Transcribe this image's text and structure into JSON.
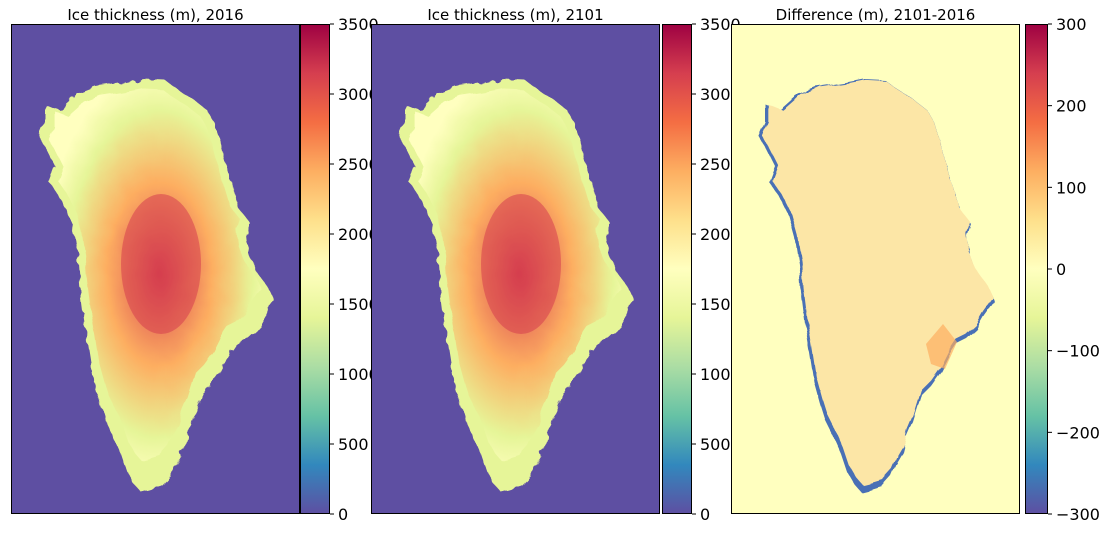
{
  "chart_data": [
    {
      "type": "heatmap",
      "title": "Ice thickness (m), 2016",
      "colorbar": {
        "ticks": [
          0,
          500,
          1000,
          1500,
          2000,
          2500,
          3000,
          3500
        ],
        "range": [
          0,
          3500
        ],
        "colormap": "Spectral_r"
      },
      "xticks": [],
      "yticks": []
    },
    {
      "type": "heatmap",
      "title": "Ice thickness (m), 2101",
      "colorbar": {
        "ticks": [
          0,
          500,
          1000,
          1500,
          2000,
          2500,
          3000,
          3500
        ],
        "range": [
          0,
          3500
        ],
        "colormap": "Spectral_r"
      },
      "xticks": [],
      "yticks": []
    },
    {
      "type": "heatmap",
      "title": "Difference (m), 2101-2016",
      "colorbar": {
        "ticks": [
          -300,
          -200,
          -100,
          0,
          100,
          200,
          300
        ],
        "range": [
          -300,
          300
        ],
        "colormap": "Spectral_r"
      },
      "xticks": [],
      "yticks": []
    }
  ],
  "colors": {
    "spectral_r": [
      "#5e4fa2",
      "#3288bd",
      "#66c2a5",
      "#abdda4",
      "#e6f598",
      "#ffffbf",
      "#fee08b",
      "#fdae61",
      "#f46d43",
      "#d53e4f",
      "#9e0142"
    ],
    "no_ice": "#5e4fa2",
    "ice_margin": "#e6f598",
    "ice_mid": "#fdae61",
    "ice_core": "#d53e4f",
    "diff_background": "#ffffbf",
    "diff_ice_body": "#fce6a6",
    "diff_thinning": "#4a6fb5"
  }
}
